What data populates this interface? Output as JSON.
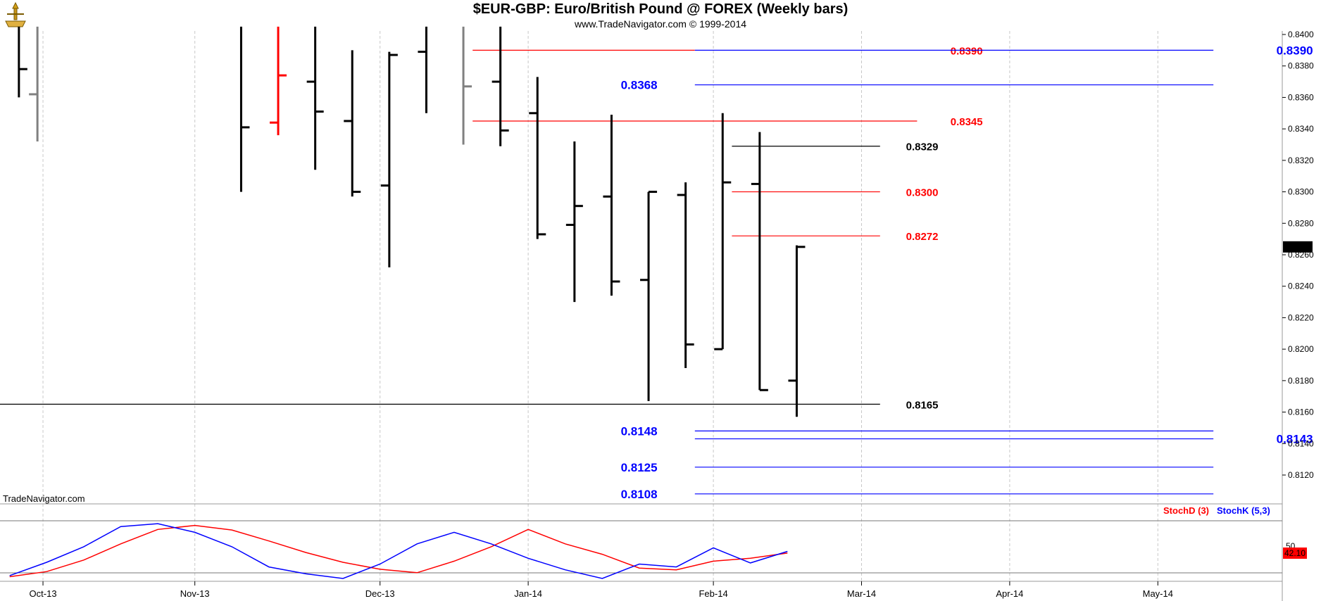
{
  "header": {
    "title": "$EUR-GBP:  Euro/British Pound @ FOREX  (Weekly bars)",
    "subtitle": "www.TradeNavigator.com © 1999-2014"
  },
  "watermark": "TradeNavigator.com",
  "legend": {
    "stochd": "StochD (3)",
    "stochk": "StochK (5,3)"
  },
  "colors": {
    "bar": "#000000",
    "bar_gray": "#808080",
    "bar_red": "#ff0000",
    "red": "#ff0000",
    "blue": "#0000ff",
    "grid": "#c8c8c8"
  },
  "chart_data": [
    {
      "type": "ohlc",
      "title": "$EUR-GBP:  Euro/British Pound @ FOREX  (Weekly bars)",
      "ylim": [
        0.8105,
        0.8405
      ],
      "y_ticks": [
        "0.8400",
        "0.8380",
        "0.8360",
        "0.8340",
        "0.8320",
        "0.8300",
        "0.8280",
        "0.8260",
        "0.8240",
        "0.8220",
        "0.8200",
        "0.8180",
        "0.8160",
        "0.8140",
        "0.8120"
      ],
      "x_ticks": [
        "Oct-13",
        "Nov-13",
        "Dec-13",
        "Jan-14",
        "Feb-14",
        "Mar-14",
        "Apr-14",
        "May-14"
      ],
      "x_tick_index": [
        0.4,
        4.5,
        9.5,
        13.5,
        18.5,
        22.5,
        26.5,
        30.5
      ],
      "last_price": "0.8265",
      "bars": [
        {
          "i": -0.25,
          "h": 0.8405,
          "l": 0.836,
          "o": null,
          "c": 0.8378,
          "color": "bar"
        },
        {
          "i": 0.25,
          "h": 0.8405,
          "l": 0.8332,
          "o": 0.8362,
          "c": null,
          "color": "bar_gray"
        },
        {
          "i": 5.75,
          "h": 0.8405,
          "l": 0.83,
          "o": null,
          "c": 0.8341,
          "color": "bar"
        },
        {
          "i": 6.75,
          "h": 0.8405,
          "l": 0.8336,
          "o": 0.8344,
          "c": 0.8374,
          "color": "bar_red"
        },
        {
          "i": 7.75,
          "h": 0.8405,
          "l": 0.8314,
          "o": 0.837,
          "c": 0.8351,
          "color": "bar"
        },
        {
          "i": 8.75,
          "h": 0.839,
          "l": 0.8297,
          "o": 0.8345,
          "c": 0.83,
          "color": "bar"
        },
        {
          "i": 9.75,
          "h": 0.8389,
          "l": 0.8252,
          "o": 0.8304,
          "c": 0.8387,
          "color": "bar"
        },
        {
          "i": 10.75,
          "h": 0.8405,
          "l": 0.835,
          "o": 0.8389,
          "c": null,
          "color": "bar"
        },
        {
          "i": 11.75,
          "h": 0.8405,
          "l": 0.833,
          "o": null,
          "c": 0.8367,
          "color": "bar_gray"
        },
        {
          "i": 12.75,
          "h": 0.8405,
          "l": 0.8329,
          "o": 0.837,
          "c": 0.8339,
          "color": "bar"
        },
        {
          "i": 13.75,
          "h": 0.8373,
          "l": 0.827,
          "o": 0.835,
          "c": 0.8273,
          "color": "bar"
        },
        {
          "i": 14.75,
          "h": 0.8332,
          "l": 0.823,
          "o": 0.8279,
          "c": 0.8291,
          "color": "bar"
        },
        {
          "i": 15.75,
          "h": 0.8349,
          "l": 0.8234,
          "o": 0.8297,
          "c": 0.8243,
          "color": "bar"
        },
        {
          "i": 16.75,
          "h": 0.83,
          "l": 0.8167,
          "o": 0.8244,
          "c": 0.83,
          "color": "bar"
        },
        {
          "i": 17.75,
          "h": 0.8306,
          "l": 0.8188,
          "o": 0.8298,
          "c": 0.8203,
          "color": "bar"
        },
        {
          "i": 18.75,
          "h": 0.835,
          "l": 0.82,
          "o": 0.82,
          "c": 0.8306,
          "color": "bar"
        },
        {
          "i": 19.75,
          "h": 0.8338,
          "l": 0.8174,
          "o": 0.8305,
          "c": 0.8174,
          "color": "bar"
        },
        {
          "i": 20.75,
          "h": 0.8266,
          "l": 0.8157,
          "o": 0.818,
          "c": 0.8265,
          "color": "bar"
        }
      ],
      "levels": [
        {
          "value": 0.839,
          "label": "0.8390",
          "color": "red",
          "x_from": 12,
          "x_to": 18,
          "label_at": 24.9,
          "label_size": 15
        },
        {
          "value": 0.839,
          "label": "0.8390",
          "color": "blue",
          "x_from": 18,
          "x_to": 32,
          "label_at": 33.7,
          "label_size": 17
        },
        {
          "value": 0.8368,
          "label": "0.8368",
          "color": "blue",
          "x_from": 18,
          "x_to": 32,
          "label_at": 16.0,
          "label_size": 17
        },
        {
          "value": 0.8345,
          "label": "0.8345",
          "color": "red",
          "x_from": 12,
          "x_to": 24,
          "label_at": 24.9,
          "label_size": 15
        },
        {
          "value": 0.8329,
          "label": "0.8329",
          "color": "black",
          "x_from": 19,
          "x_to": 23,
          "label_at": 23.7,
          "label_size": 15
        },
        {
          "value": 0.83,
          "label": "0.8300",
          "color": "red",
          "x_from": 19,
          "x_to": 23,
          "label_at": 23.7,
          "label_size": 15
        },
        {
          "value": 0.8272,
          "label": "0.8272",
          "color": "red",
          "x_from": 19,
          "x_to": 23,
          "label_at": 23.7,
          "label_size": 15
        },
        {
          "value": 0.8165,
          "label": "0.8165",
          "color": "black",
          "x_from": -1,
          "x_to": 23,
          "label_at": 23.7,
          "label_size": 15
        },
        {
          "value": 0.8148,
          "label": "0.8148",
          "color": "blue",
          "x_from": 18,
          "x_to": 32,
          "label_at": 16.0,
          "label_size": 17
        },
        {
          "value": 0.8143,
          "label": "0.8143",
          "color": "blue",
          "x_from": 18,
          "x_to": 32,
          "label_at": 33.7,
          "label_size": 17
        },
        {
          "value": 0.8125,
          "label": "0.8125",
          "color": "blue",
          "x_from": 18,
          "x_to": 32,
          "label_at": 16.0,
          "label_size": 17
        },
        {
          "value": 0.8108,
          "label": "0.8108",
          "color": "blue",
          "x_from": 18,
          "x_to": 32,
          "label_at": 16.0,
          "label_size": 17
        }
      ]
    },
    {
      "type": "line",
      "title": "",
      "ylim": [
        0,
        100
      ],
      "readouts": [
        "50",
        "42.10"
      ],
      "series": [
        {
          "name": "StochD (3)",
          "color": "red",
          "x": [
            -0.5,
            0.5,
            1.5,
            2.5,
            3.5,
            4.5,
            5.5,
            6.5,
            7.5,
            8.5,
            9.5,
            10.5,
            11.5,
            12.5,
            13.5,
            14.5,
            15.5,
            16.5,
            17.5,
            18.5,
            19.5,
            20.5
          ],
          "y": [
            3,
            12,
            32,
            60,
            85,
            92,
            84,
            65,
            45,
            28,
            16,
            10,
            30,
            55,
            85,
            60,
            42,
            18,
            15,
            30,
            35,
            44
          ]
        },
        {
          "name": "StochK (5,3)",
          "color": "blue",
          "x": [
            -0.5,
            0.5,
            1.5,
            2.5,
            3.5,
            4.5,
            5.5,
            6.5,
            7.5,
            8.5,
            9.5,
            10.5,
            11.5,
            12.5,
            13.5,
            14.5,
            15.5,
            16.5,
            17.5,
            18.5,
            19.5,
            20.5
          ],
          "y": [
            5,
            28,
            55,
            90,
            95,
            80,
            55,
            20,
            8,
            0,
            25,
            60,
            80,
            60,
            35,
            15,
            0,
            25,
            20,
            53,
            27,
            47
          ]
        }
      ]
    }
  ]
}
